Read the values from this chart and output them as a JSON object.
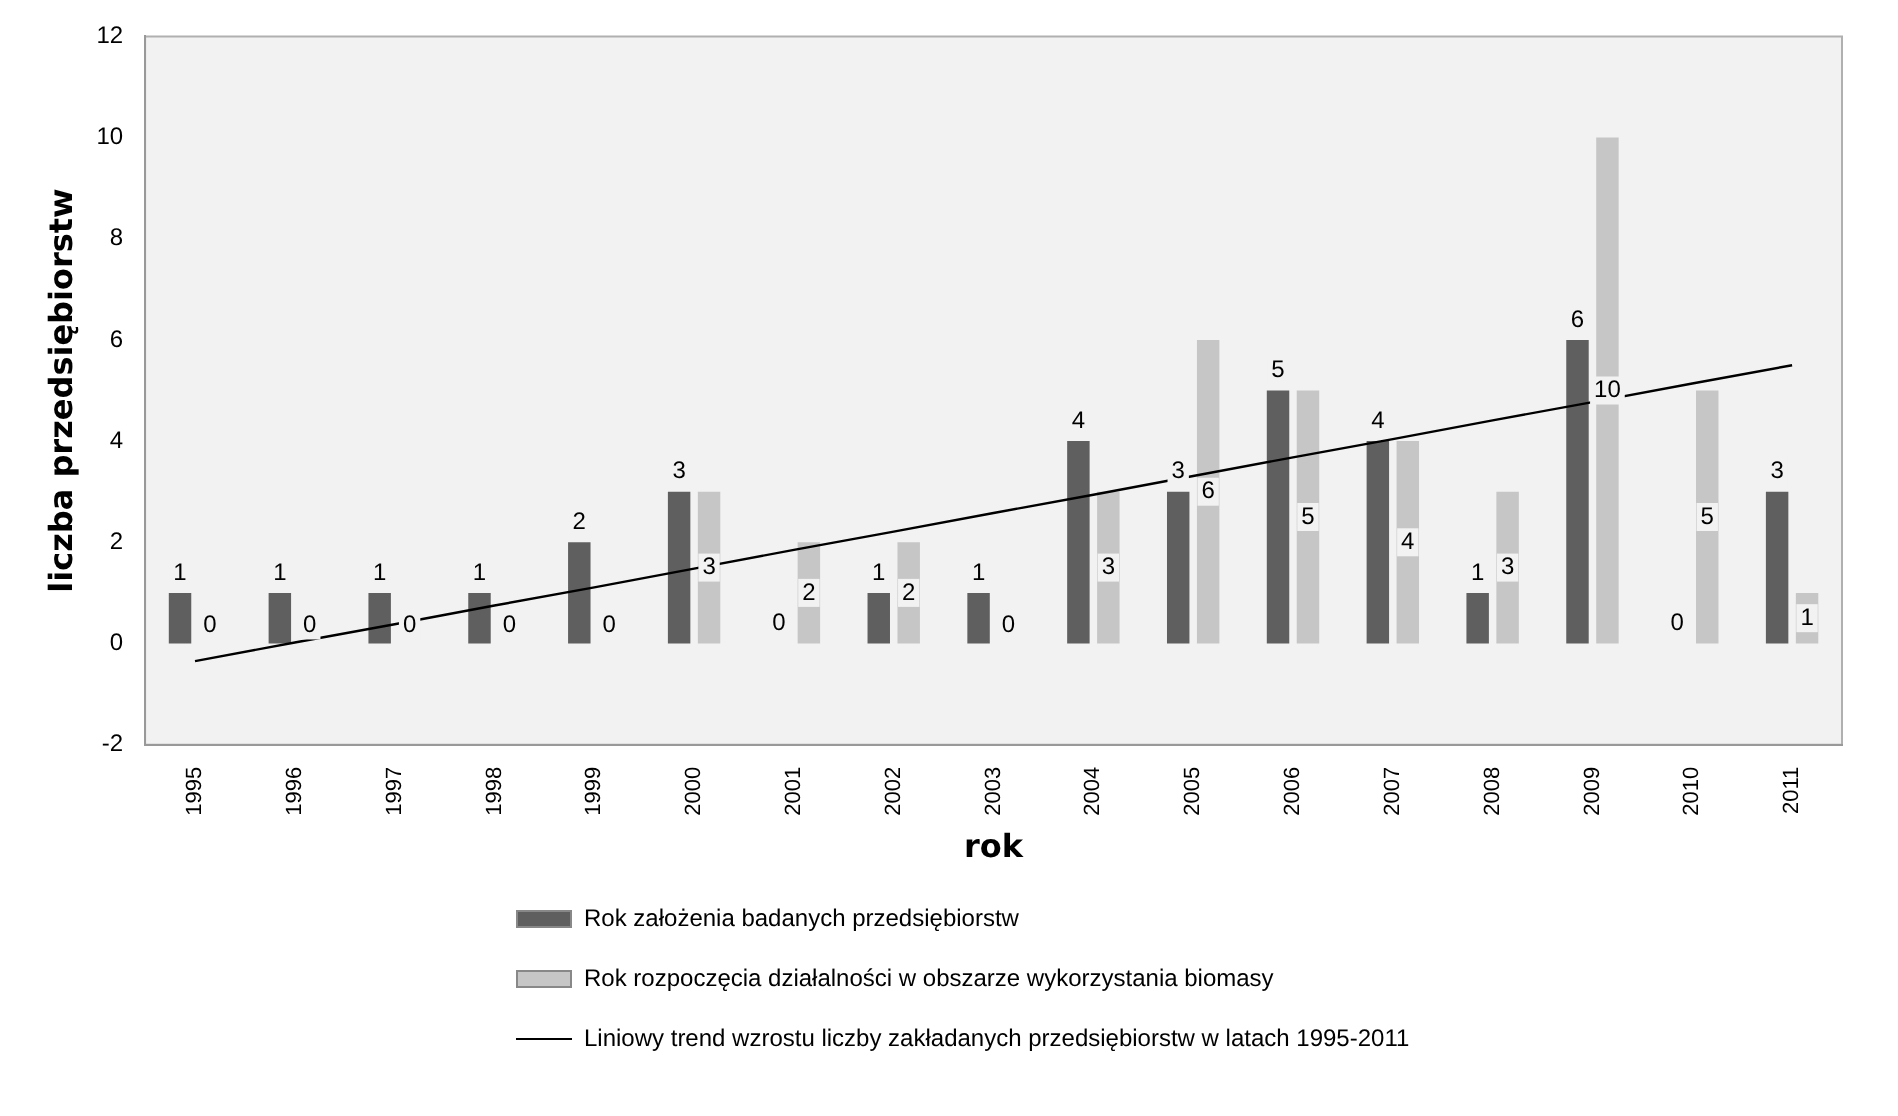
{
  "chart_data": {
    "type": "bar",
    "xlabel": "rok",
    "ylabel": "liczba przedsiębiorstw",
    "categories": [
      "1995",
      "1996",
      "1997",
      "1998",
      "1999",
      "2000",
      "2001",
      "2002",
      "2003",
      "2004",
      "2005",
      "2006",
      "2007",
      "2008",
      "2009",
      "2010",
      "2011"
    ],
    "series": [
      {
        "name": "Rok założenia badanych przedsiębiorstw",
        "color": "#5f5f5f",
        "values": [
          1,
          1,
          1,
          1,
          2,
          3,
          0,
          1,
          1,
          4,
          3,
          5,
          4,
          1,
          6,
          0,
          3
        ],
        "value_labels": [
          "1",
          "1",
          "1",
          "1",
          "2",
          "3",
          "0",
          "1",
          "1",
          "4",
          "3",
          "5",
          "4",
          "1",
          "6",
          "0",
          "3"
        ]
      },
      {
        "name": "Rok rozpoczęcia działalności w obszarze wykorzystania biomasy",
        "color": "#c6c6c6",
        "values": [
          0,
          0,
          0,
          0,
          0,
          3,
          2,
          2,
          0,
          3,
          6,
          5,
          4,
          3,
          10,
          5,
          1
        ],
        "value_labels": [
          "0",
          "0",
          "0",
          "0",
          "0",
          "3",
          "2",
          "2",
          "0",
          "3",
          "6",
          "5",
          "4",
          "3",
          "10",
          "5",
          "1"
        ]
      },
      {
        "name": "Liniowy trend wzrostu  liczby zakładanych przedsiębiorstw w latach 1995-2011",
        "type": "line",
        "color": "#000000",
        "values": [
          -0.35,
          0.02,
          0.38,
          0.75,
          1.11,
          1.48,
          1.85,
          2.21,
          2.58,
          2.94,
          3.31,
          3.68,
          4.04,
          4.41,
          4.77,
          5.14,
          5.5
        ]
      }
    ],
    "ylim": [
      -2,
      12
    ],
    "yticks": [
      -2,
      0,
      2,
      4,
      6,
      8,
      10,
      12
    ],
    "grid": false,
    "legend": "bottom",
    "marker": "none"
  }
}
